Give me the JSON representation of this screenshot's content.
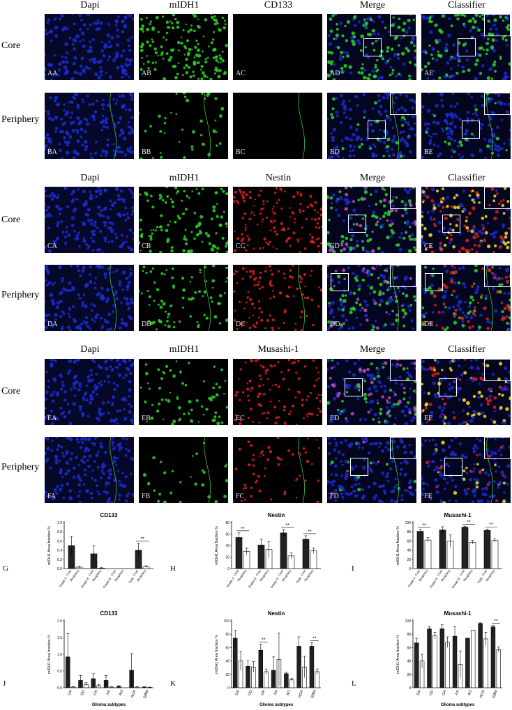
{
  "columns_a": [
    "Dapi",
    "mIDH1",
    "CD133",
    "Merge",
    "Classifier"
  ],
  "columns_b": [
    "Dapi",
    "mIDH1",
    "Nestin",
    "Merge",
    "Classifier"
  ],
  "columns_c": [
    "Dapi",
    "mIDH1",
    "Musashi-1",
    "Merge",
    "Classifier"
  ],
  "rows": {
    "core": "Core",
    "periphery": "Periphery"
  },
  "panel_labels": {
    "A": [
      "AA",
      "AB",
      "AC",
      "AD",
      "AE"
    ],
    "B": [
      "BA",
      "BB",
      "BC",
      "BD",
      "BE"
    ],
    "C": [
      "CA",
      "CB",
      "CC",
      "CD",
      "CE"
    ],
    "D": [
      "DA",
      "DB",
      "DC",
      "DD",
      "DE"
    ],
    "E": [
      "EA",
      "EB",
      "EC",
      "ED",
      "EE"
    ],
    "F": [
      "FA",
      "FB",
      "FC",
      "FD",
      "FE"
    ]
  },
  "chart_data": [
    {
      "id": "G",
      "type": "bar",
      "title": "CD133",
      "ylabel": "mIDH1 Area fraction %",
      "ylim": [
        0,
        1.0
      ],
      "yticks": [
        "0.0",
        "0.2",
        "0.4",
        "0.6",
        "0.8",
        "1.0"
      ],
      "ytick_values": [
        0,
        0.2,
        0.4,
        0.6,
        0.8,
        1.0
      ],
      "groups": [
        "Grade II",
        "Grade III",
        "Grade IV",
        "Total"
      ],
      "series": [
        {
          "name": "Core",
          "values": [
            0.5,
            0.32,
            0.0,
            0.4
          ],
          "err": [
            0.2,
            0.18,
            0.0,
            0.15
          ]
        },
        {
          "name": "Periphery",
          "values": [
            0.03,
            0.01,
            0.0,
            0.04
          ],
          "err": [
            0.02,
            0.01,
            0.0,
            0.02
          ]
        }
      ],
      "sig": [
        "",
        "",
        "",
        "**"
      ]
    },
    {
      "id": "H",
      "type": "bar",
      "title": "Nestin",
      "ylabel": "mIDH1 Area fraction %",
      "ylim": [
        0,
        80
      ],
      "yticks": [
        "0",
        "20",
        "40",
        "60",
        "80"
      ],
      "ytick_values": [
        0,
        20,
        40,
        60,
        80
      ],
      "groups": [
        "Grade II",
        "Grade III",
        "Grade IV",
        "Total"
      ],
      "series": [
        {
          "name": "Core",
          "values": [
            54,
            41,
            62,
            51
          ],
          "err": [
            8,
            10,
            6,
            6
          ]
        },
        {
          "name": "Periphery",
          "values": [
            30,
            33,
            22,
            31
          ],
          "err": [
            6,
            14,
            5,
            5
          ]
        }
      ],
      "sig": [
        "**",
        "",
        "**",
        "**"
      ]
    },
    {
      "id": "I",
      "type": "bar",
      "title": "Musashi-1",
      "ylabel": "mIDH1 Area fraction %",
      "ylim": [
        0,
        100
      ],
      "yticks": [
        "0",
        "20",
        "40",
        "60",
        "80",
        "100"
      ],
      "ytick_values": [
        0,
        20,
        40,
        60,
        80,
        100
      ],
      "groups": [
        "Grade II",
        "Grade III",
        "Grade IV",
        "Total"
      ],
      "series": [
        {
          "name": "Core",
          "values": [
            81,
            84,
            90,
            83
          ],
          "err": [
            4,
            7,
            2,
            3
          ]
        },
        {
          "name": "Periphery",
          "values": [
            62,
            60,
            57,
            61
          ],
          "err": [
            5,
            13,
            4,
            4
          ]
        }
      ],
      "sig": [
        "**",
        "",
        "**",
        "**"
      ]
    },
    {
      "id": "J",
      "type": "bar",
      "title": "CD133",
      "ylabel": "mIDH1 Area fraction %",
      "xlabel": "Glioma subtypes",
      "ylim": [
        0,
        2.0
      ],
      "yticks": [
        "0.0",
        "0.5",
        "1.0",
        "1.5",
        "2.0"
      ],
      "ytick_values": [
        0,
        0.5,
        1.0,
        1.5,
        2.0
      ],
      "groups": [
        "DA",
        "OD",
        "OA",
        "AA",
        "AO",
        "AOA",
        "GBM"
      ],
      "series": [
        {
          "name": "Core",
          "values": [
            0.92,
            0.22,
            0.27,
            0.22,
            0.04,
            0.52,
            0.02
          ],
          "err": [
            0.7,
            0.15,
            0.15,
            0.15,
            0.02,
            0.5,
            0.01
          ]
        },
        {
          "name": "Periphery",
          "values": [
            0.02,
            0.1,
            0.06,
            0.02,
            0.0,
            0.02,
            0.01
          ],
          "err": [
            0.01,
            0.05,
            0.04,
            0.01,
            0.0,
            0.01,
            0.01
          ]
        }
      ],
      "sig": [
        "",
        "",
        "",
        "",
        "",
        "",
        ""
      ]
    },
    {
      "id": "K",
      "type": "bar",
      "title": "Nestin",
      "ylabel": "mIDH1 Area fraction %",
      "xlabel": "Glioma subtypes",
      "ylim": [
        0,
        100
      ],
      "yticks": [
        "0",
        "20",
        "40",
        "60",
        "80",
        "100"
      ],
      "ytick_values": [
        0,
        20,
        40,
        60,
        80,
        100
      ],
      "groups": [
        "DA",
        "OD",
        "OA",
        "AA",
        "AO",
        "AOA",
        "GBM"
      ],
      "series": [
        {
          "name": "Core",
          "values": [
            74,
            32,
            56,
            26,
            21,
            62,
            62
          ],
          "err": [
            12,
            8,
            9,
            20,
            2,
            14,
            5
          ]
        },
        {
          "name": "Periphery",
          "values": [
            40,
            31,
            24,
            42,
            12,
            31,
            24
          ],
          "err": [
            14,
            8,
            4,
            40,
            2,
            16,
            4
          ]
        }
      ],
      "sig": [
        "",
        "",
        "**",
        "",
        "",
        "",
        "**"
      ]
    },
    {
      "id": "L",
      "type": "bar",
      "title": "Musashi-1",
      "ylabel": "mIDH1 Area fraction %",
      "xlabel": "Glioma subtypes",
      "ylim": [
        0,
        100
      ],
      "yticks": [
        "0",
        "20",
        "40",
        "60",
        "80",
        "100"
      ],
      "ytick_values": [
        0,
        20,
        40,
        60,
        80,
        100
      ],
      "groups": [
        "DA",
        "OD",
        "OA",
        "AA",
        "AO",
        "AOA",
        "GBM"
      ],
      "series": [
        {
          "name": "Core",
          "values": [
            67,
            88,
            88,
            77,
            74,
            96,
            91
          ],
          "err": [
            7,
            3,
            6,
            14,
            0,
            1,
            2
          ]
        },
        {
          "name": "Periphery",
          "values": [
            40,
            78,
            68,
            35,
            86,
            73,
            57
          ],
          "err": [
            10,
            5,
            8,
            20,
            0,
            10,
            4
          ]
        }
      ],
      "sig": [
        "",
        "",
        "",
        "",
        "",
        "",
        "**"
      ]
    }
  ],
  "colors": {
    "bar_core": "#222222",
    "bar_periphery": "#ffffff",
    "dapi": "#1a2bd0",
    "midh1": "#2cd42c",
    "marker": "#e0201a",
    "classifier": "#f0e020"
  }
}
